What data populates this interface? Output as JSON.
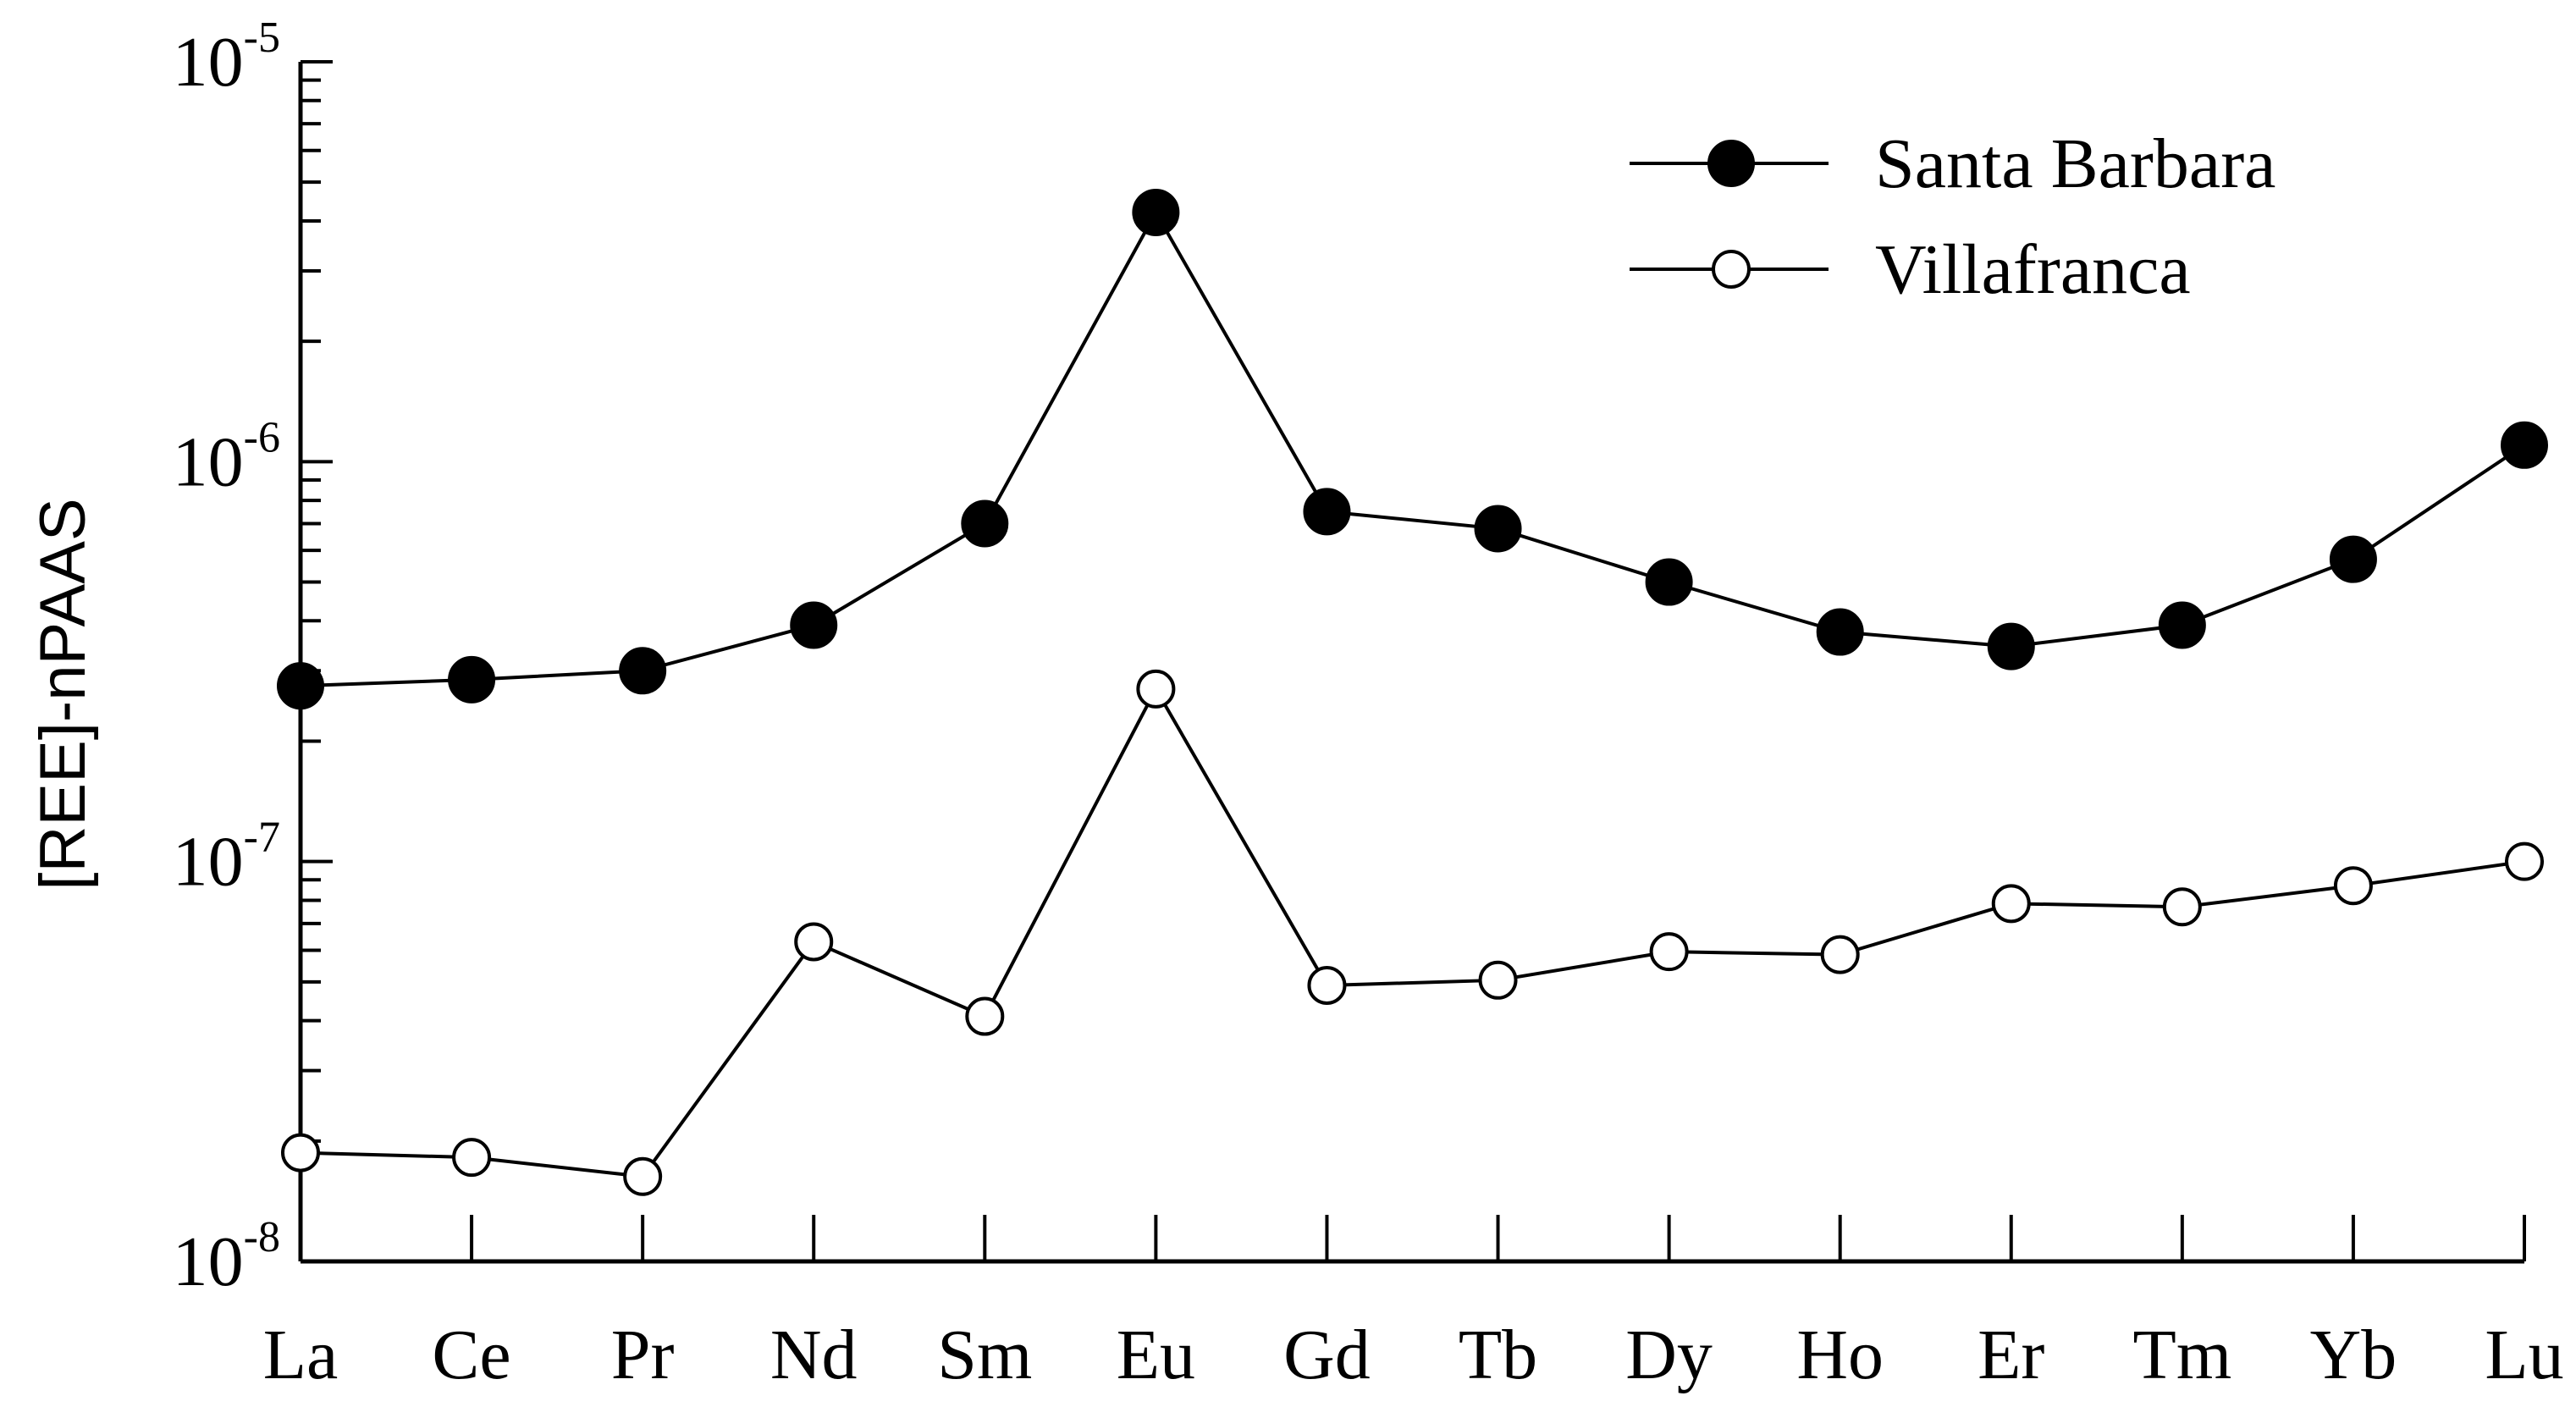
{
  "chart_data": {
    "type": "line",
    "ylabel": "[REE]-nPAAS",
    "yscale": "log",
    "ylim": [
      1e-08,
      1e-05
    ],
    "y_ticks": [
      {
        "value": 1e-08,
        "base": "10",
        "exp": "-8"
      },
      {
        "value": 1e-07,
        "base": "10",
        "exp": "-7"
      },
      {
        "value": 1e-06,
        "base": "10",
        "exp": "-6"
      },
      {
        "value": 1e-05,
        "base": "10",
        "exp": "-5"
      }
    ],
    "categories": [
      "La",
      "Ce",
      "Pr",
      "Nd",
      "Sm",
      "Eu",
      "Gd",
      "Tb",
      "Dy",
      "Ho",
      "Er",
      "Tm",
      "Yb",
      "Lu"
    ],
    "series": [
      {
        "name": "Santa Barbara",
        "marker": "filled-circle",
        "color": "#000000",
        "values": [
          2.75e-07,
          2.85e-07,
          3e-07,
          3.9e-07,
          7e-07,
          4.2e-06,
          7.5e-07,
          6.8e-07,
          5e-07,
          3.75e-07,
          3.45e-07,
          3.9e-07,
          5.7e-07,
          1.1e-06
        ]
      },
      {
        "name": "Villafranca",
        "marker": "open-circle",
        "color": "#000000",
        "values": [
          1.87e-08,
          1.82e-08,
          1.63e-08,
          6.3e-08,
          4.1e-08,
          2.7e-07,
          4.9e-08,
          5.05e-08,
          5.95e-08,
          5.85e-08,
          7.85e-08,
          7.7e-08,
          8.7e-08,
          1e-07
        ]
      }
    ],
    "grid": false,
    "legend_position": "top-right"
  }
}
